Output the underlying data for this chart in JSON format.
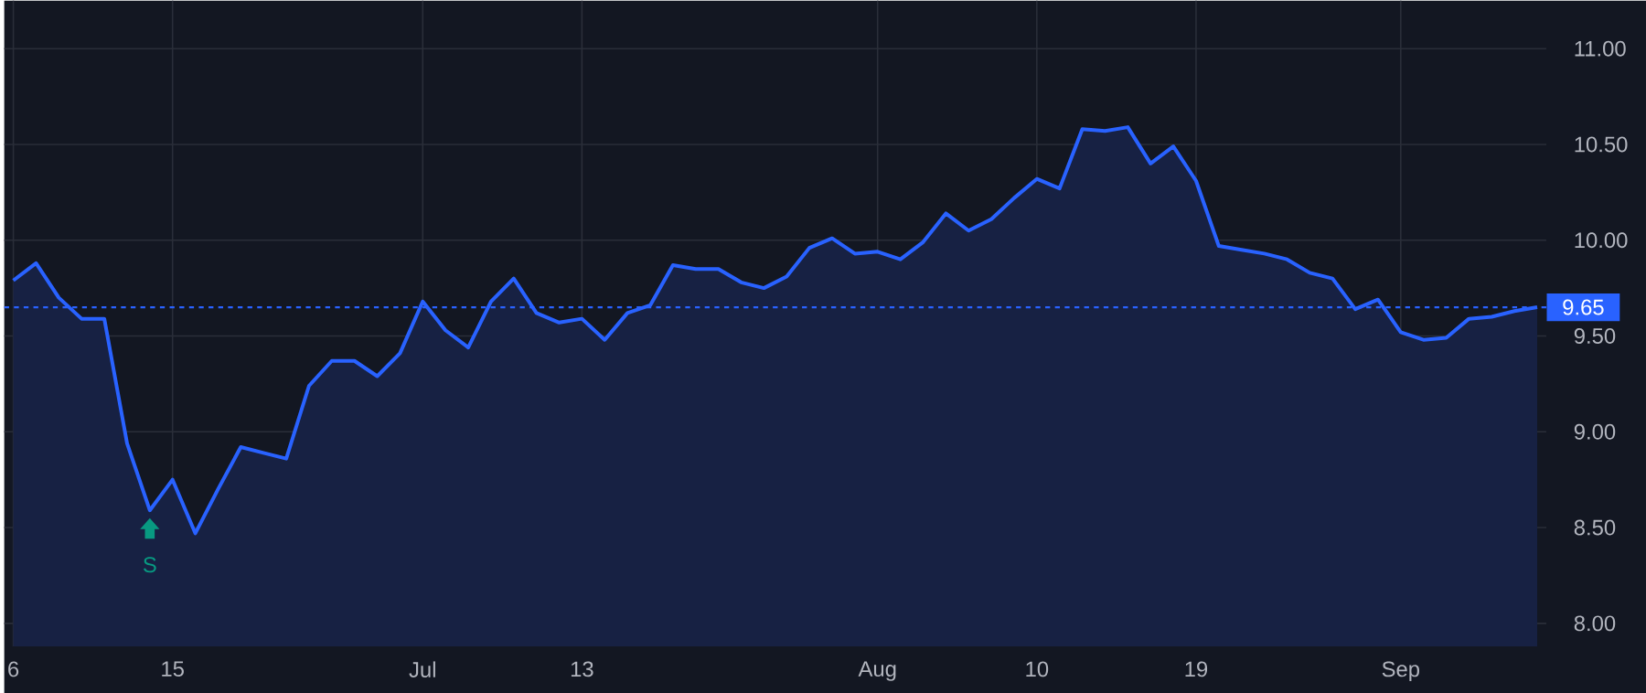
{
  "chart_data": {
    "type": "area",
    "categories": [
      "6",
      null,
      null,
      null,
      null,
      null,
      null,
      "15",
      null,
      null,
      null,
      null,
      null,
      null,
      null,
      null,
      null,
      null,
      "Jul",
      null,
      null,
      null,
      null,
      null,
      null,
      "13",
      null,
      null,
      null,
      null,
      null,
      null,
      null,
      null,
      null,
      null,
      null,
      null,
      "Aug",
      null,
      null,
      null,
      null,
      null,
      null,
      "10",
      null,
      null,
      null,
      null,
      null,
      null,
      "19",
      null,
      null,
      null,
      null,
      null,
      null,
      null,
      null,
      "Sep",
      null,
      null,
      null,
      null,
      null,
      null
    ],
    "values": [
      9.79,
      9.88,
      9.7,
      9.59,
      9.59,
      8.94,
      8.59,
      8.75,
      8.47,
      8.7,
      8.92,
      8.89,
      8.86,
      9.24,
      9.37,
      9.37,
      9.29,
      9.41,
      9.68,
      9.53,
      9.44,
      9.68,
      9.8,
      9.62,
      9.57,
      9.59,
      9.48,
      9.62,
      9.66,
      9.87,
      9.85,
      9.85,
      9.78,
      9.75,
      9.81,
      9.96,
      10.01,
      9.93,
      9.94,
      9.9,
      9.99,
      10.14,
      10.05,
      10.11,
      10.22,
      10.32,
      10.27,
      10.58,
      10.57,
      10.59,
      10.4,
      10.49,
      10.31,
      9.97,
      9.95,
      9.93,
      9.9,
      9.83,
      9.8,
      9.64,
      9.69,
      9.52,
      9.48,
      9.49,
      9.59,
      9.6,
      9.63,
      9.65
    ],
    "color": "#2962ff",
    "ylim": [
      7.88,
      11.25
    ],
    "yticks": [
      {
        "value": 8,
        "label": "8.00"
      },
      {
        "value": 8.5,
        "label": "8.50"
      },
      {
        "value": 9,
        "label": "9.00"
      },
      {
        "value": 9.5,
        "label": "9.50"
      },
      {
        "value": 10,
        "label": "10.00"
      },
      {
        "value": 10.5,
        "label": "10.50"
      },
      {
        "value": 11,
        "label": "11.00"
      }
    ],
    "grid": true,
    "ref_lines": [
      {
        "axis": "y",
        "value": 9.65,
        "label": "9.65",
        "color": "#2962ff",
        "line_style": "dotted"
      }
    ],
    "annotations": [
      {
        "text": "S",
        "y": 8.59
      }
    ]
  }
}
